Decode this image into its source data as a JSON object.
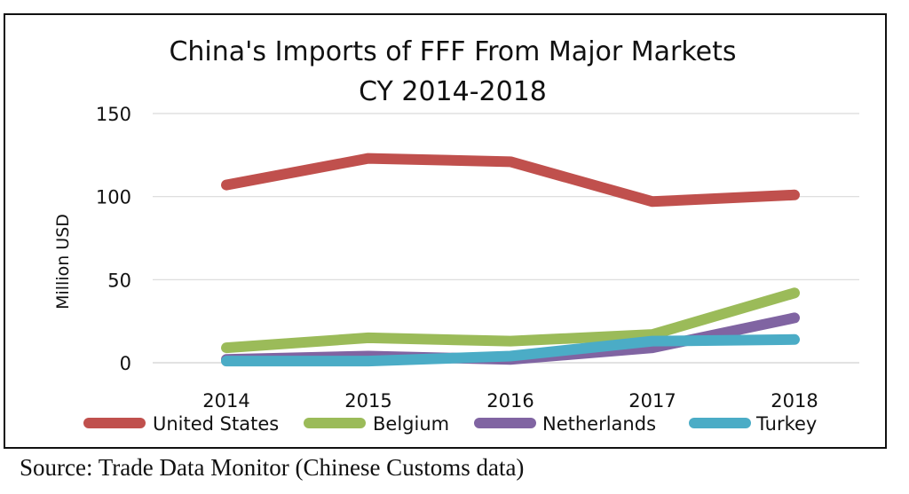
{
  "chart_data": {
    "type": "line",
    "title_lines": [
      "China's Imports of FFF From Major Markets",
      "CY 2014-2018"
    ],
    "categories": [
      "2014",
      "2015",
      "2016",
      "2017",
      "2018"
    ],
    "ylabel": "Million USD",
    "xlabel": "",
    "ylim": [
      0,
      150
    ],
    "yticks": [
      "0",
      "50",
      "100",
      "150"
    ],
    "grid": true,
    "legend_position": "bottom",
    "series": [
      {
        "name": "United States",
        "color": "#c0504d",
        "values": [
          107,
          123,
          121,
          97,
          101
        ]
      },
      {
        "name": "Belgium",
        "color": "#9bbb59",
        "values": [
          9,
          15,
          13,
          17,
          42
        ]
      },
      {
        "name": "Netherlands",
        "color": "#8064a2",
        "values": [
          2,
          4,
          2,
          9,
          27
        ]
      },
      {
        "name": "Turkey",
        "color": "#4bacc6",
        "values": [
          1,
          1,
          4,
          13,
          14
        ]
      }
    ]
  },
  "source_text": "Source: Trade Data Monitor (Chinese Customs data)"
}
